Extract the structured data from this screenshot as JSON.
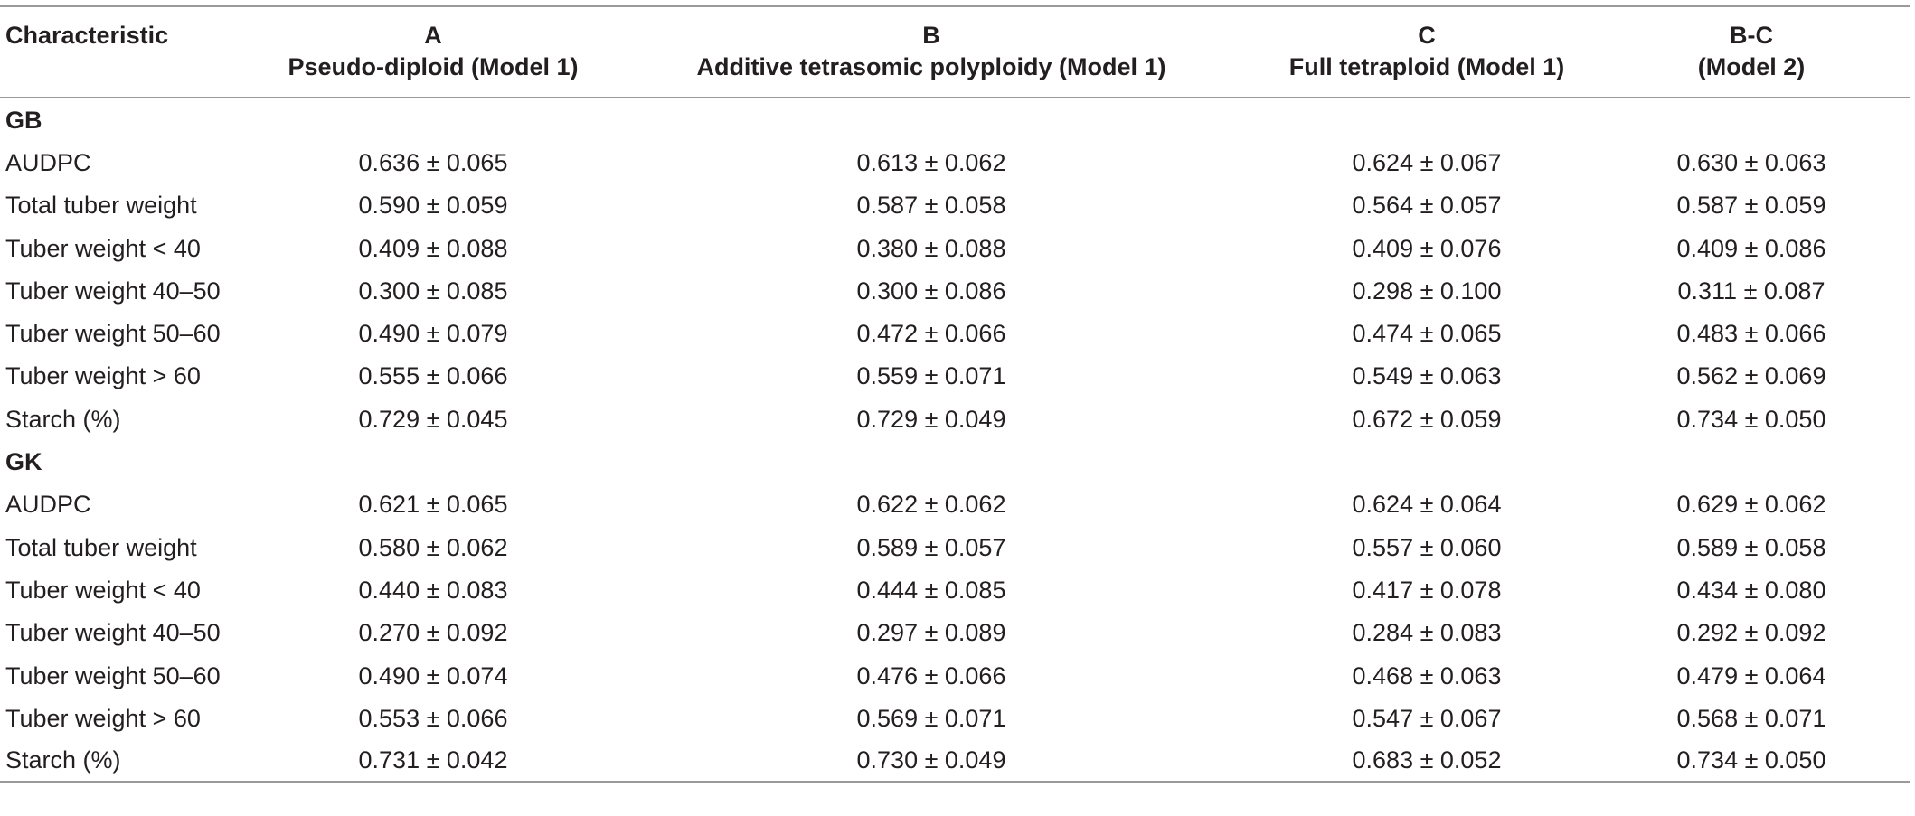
{
  "table": {
    "headers": [
      {
        "line1": "Characteristic",
        "line2": ""
      },
      {
        "line1": "A",
        "line2": "Pseudo-diploid (Model 1)"
      },
      {
        "line1": "B",
        "line2": "Additive tetrasomic polyploidy (Model 1)"
      },
      {
        "line1": "C",
        "line2": "Full tetraploid (Model 1)"
      },
      {
        "line1": "B-C",
        "line2": "(Model 2)"
      }
    ],
    "groups": [
      {
        "name": "GB",
        "rows": [
          {
            "label": "AUDPC",
            "values": [
              "0.636 ± 0.065",
              "0.613 ± 0.062",
              "0.624 ± 0.067",
              "0.630 ± 0.063"
            ]
          },
          {
            "label": "Total tuber weight",
            "values": [
              "0.590 ± 0.059",
              "0.587 ± 0.058",
              "0.564 ± 0.057",
              "0.587 ± 0.059"
            ]
          },
          {
            "label": "Tuber weight < 40",
            "values": [
              "0.409 ± 0.088",
              "0.380 ± 0.088",
              "0.409 ± 0.076",
              "0.409 ± 0.086"
            ]
          },
          {
            "label": "Tuber weight 40–50",
            "values": [
              "0.300 ± 0.085",
              "0.300 ± 0.086",
              "0.298 ± 0.100",
              "0.311 ± 0.087"
            ]
          },
          {
            "label": "Tuber weight 50–60",
            "values": [
              "0.490 ± 0.079",
              "0.472 ± 0.066",
              "0.474 ± 0.065",
              "0.483 ± 0.066"
            ]
          },
          {
            "label": "Tuber weight > 60",
            "values": [
              "0.555 ± 0.066",
              "0.559 ± 0.071",
              "0.549 ± 0.063",
              "0.562 ± 0.069"
            ]
          },
          {
            "label": "Starch (%)",
            "values": [
              "0.729 ± 0.045",
              "0.729 ± 0.049",
              "0.672 ± 0.059",
              "0.734 ± 0.050"
            ]
          }
        ]
      },
      {
        "name": "GK",
        "rows": [
          {
            "label": "AUDPC",
            "values": [
              "0.621 ± 0.065",
              "0.622 ± 0.062",
              "0.624 ± 0.064",
              "0.629 ± 0.062"
            ]
          },
          {
            "label": "Total tuber weight",
            "values": [
              "0.580 ± 0.062",
              "0.589 ± 0.057",
              "0.557 ± 0.060",
              "0.589 ± 0.058"
            ]
          },
          {
            "label": "Tuber weight < 40",
            "values": [
              "0.440 ± 0.083",
              "0.444 ± 0.085",
              "0.417 ± 0.078",
              "0.434 ± 0.080"
            ]
          },
          {
            "label": "Tuber weight 40–50",
            "values": [
              "0.270 ± 0.092",
              "0.297 ± 0.089",
              "0.284 ± 0.083",
              "0.292 ± 0.092"
            ]
          },
          {
            "label": "Tuber weight 50–60",
            "values": [
              "0.490 ± 0.074",
              "0.476 ± 0.066",
              "0.468 ± 0.063",
              "0.479 ± 0.064"
            ]
          },
          {
            "label": "Tuber weight > 60",
            "values": [
              "0.553 ± 0.066",
              "0.569 ± 0.071",
              "0.547 ± 0.067",
              "0.568 ± 0.071"
            ]
          },
          {
            "label": "Starch (%)",
            "values": [
              "0.731 ± 0.042",
              "0.730 ± 0.049",
              "0.683 ± 0.052",
              "0.734 ± 0.050"
            ]
          }
        ]
      }
    ]
  }
}
